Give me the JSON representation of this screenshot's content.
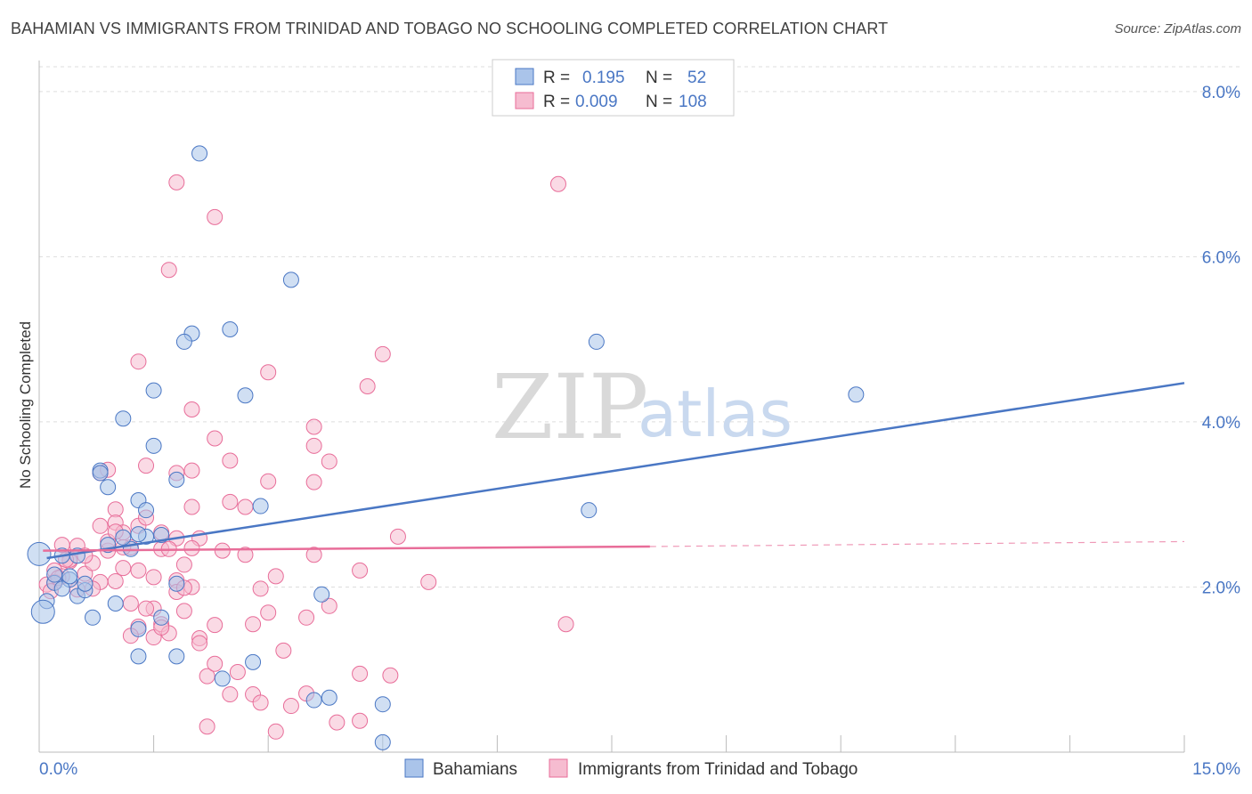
{
  "title": "BAHAMIAN VS IMMIGRANTS FROM TRINIDAD AND TOBAGO NO SCHOOLING COMPLETED CORRELATION CHART",
  "source": "Source: ZipAtlas.com",
  "watermark": {
    "zip": "ZIP",
    "atlas": "atlas"
  },
  "colors": {
    "blue": "#4a77c4",
    "blue_fill": "#aac4ea",
    "pink": "#e86d99",
    "pink_fill": "#f6bcd0",
    "grid": "#dddddd"
  },
  "legend": {
    "rows": [
      {
        "r_label": "R =",
        "r_value": "0.195",
        "n_label": "N =",
        "n_value": "52"
      },
      {
        "r_label": "R =",
        "r_value": "0.009",
        "n_label": "N =",
        "n_value": "108"
      }
    ]
  },
  "chart_data": {
    "type": "scatter",
    "title": "BAHAMIAN VS IMMIGRANTS FROM TRINIDAD AND TOBAGO NO SCHOOLING COMPLETED CORRELATION CHART",
    "xlabel": "",
    "ylabel": "No Schooling Completed",
    "xlim": [
      0,
      15
    ],
    "ylim": [
      0,
      8.3
    ],
    "x_tick_labels": [
      "0.0%",
      "15.0%"
    ],
    "y_ticks": [
      2,
      4,
      6,
      8
    ],
    "y_tick_labels": [
      "2.0%",
      "4.0%",
      "6.0%",
      "8.0%"
    ],
    "grid": true,
    "legend_placement": "top-center",
    "series": [
      {
        "name": "Bahamians",
        "color": "#4a77c4",
        "r": 0.195,
        "n": 52,
        "trend": {
          "x": [
            0.1,
            15.0
          ],
          "y": [
            2.35,
            4.47
          ]
        },
        "x": [
          2.1,
          3.3,
          2.0,
          2.5,
          1.9,
          1.5,
          1.1,
          1.5,
          1.8,
          0.8,
          0.9,
          0.8,
          1.3,
          1.4,
          1.4,
          2.7,
          2.9,
          0.5,
          0.4,
          0.5,
          0.6,
          0.7,
          1.0,
          0.9,
          1.2,
          1.8,
          1.6,
          1.3,
          1.3,
          1.8,
          2.4,
          2.8,
          3.6,
          3.8,
          3.7,
          4.5,
          4.5,
          7.3,
          10.7,
          0.1,
          0.05,
          0.2,
          0.3,
          0.4,
          0.6,
          0.2,
          0.3,
          0.0,
          7.2,
          1.6,
          1.1,
          1.3
        ],
        "y": [
          7.25,
          5.72,
          5.07,
          5.12,
          4.97,
          4.38,
          4.04,
          3.71,
          3.3,
          3.41,
          3.21,
          3.38,
          3.05,
          2.93,
          2.61,
          4.32,
          2.98,
          2.38,
          2.09,
          1.89,
          1.96,
          1.63,
          1.8,
          2.51,
          2.46,
          2.04,
          1.63,
          1.49,
          1.16,
          1.16,
          0.89,
          1.09,
          0.63,
          0.66,
          1.91,
          0.58,
          0.12,
          4.97,
          4.33,
          1.83,
          1.7,
          2.05,
          1.98,
          2.13,
          2.04,
          2.15,
          2.38,
          2.4,
          2.93,
          2.63,
          2.6,
          2.64
        ]
      },
      {
        "name": "Immigrants from Trinidad and Tobago",
        "color": "#e86d99",
        "r": 0.009,
        "n": 108,
        "trend": {
          "x": [
            0.05,
            8.0
          ],
          "y": [
            2.44,
            2.49
          ]
        },
        "trend_dashed": {
          "x": [
            8.0,
            15.0
          ],
          "y": [
            2.49,
            2.55
          ]
        },
        "x": [
          1.8,
          6.8,
          2.3,
          1.7,
          1.3,
          4.5,
          3.0,
          4.3,
          3.6,
          3.6,
          2.3,
          2.0,
          2.5,
          2.0,
          1.4,
          1.8,
          0.8,
          0.9,
          1.0,
          1.0,
          1.1,
          1.3,
          0.9,
          1.6,
          1.8,
          2.1,
          2.0,
          1.9,
          1.8,
          2.7,
          3.1,
          3.6,
          4.2,
          4.7,
          0.2,
          0.3,
          0.4,
          0.5,
          0.6,
          0.7,
          0.8,
          1.1,
          1.2,
          1.0,
          1.3,
          1.5,
          1.5,
          1.9,
          2.1,
          1.6,
          1.7,
          2.3,
          2.8,
          3.0,
          3.2,
          3.5,
          3.8,
          4.2,
          4.6,
          5.1,
          6.9,
          1.3,
          1.2,
          1.5,
          1.6,
          2.1,
          2.2,
          2.3,
          2.5,
          2.6,
          2.8,
          2.9,
          3.3,
          3.5,
          3.9,
          4.2,
          0.9,
          1.0,
          1.1,
          1.4,
          1.6,
          1.7,
          2.0,
          2.5,
          2.7,
          3.0,
          3.6,
          3.8,
          0.4,
          0.6,
          0.8,
          0.3,
          0.2,
          0.1,
          0.15,
          0.25,
          0.5,
          0.7,
          1.2,
          1.4,
          1.8,
          2.0,
          2.4,
          2.9,
          0.35,
          1.9,
          2.2,
          3.1
        ],
        "y": [
          6.9,
          6.88,
          6.48,
          5.84,
          4.73,
          4.82,
          4.6,
          4.43,
          3.94,
          3.71,
          3.8,
          4.15,
          3.53,
          3.41,
          3.47,
          3.38,
          3.38,
          3.42,
          2.94,
          2.78,
          2.66,
          2.74,
          2.44,
          2.66,
          2.59,
          2.59,
          2.47,
          2.27,
          2.08,
          2.39,
          2.13,
          2.39,
          2.2,
          2.61,
          2.2,
          2.51,
          2.31,
          2.5,
          2.16,
          2.29,
          2.06,
          2.23,
          2.48,
          2.07,
          2.2,
          2.12,
          1.74,
          1.71,
          1.38,
          1.55,
          1.44,
          1.54,
          1.55,
          1.69,
          1.23,
          1.63,
          1.77,
          0.95,
          0.93,
          2.06,
          1.55,
          1.52,
          1.41,
          1.39,
          1.51,
          1.32,
          0.92,
          1.07,
          0.7,
          0.97,
          0.7,
          0.6,
          0.56,
          0.71,
          0.36,
          0.38,
          2.55,
          2.67,
          2.48,
          2.84,
          2.46,
          2.46,
          2.97,
          3.03,
          2.97,
          3.28,
          3.27,
          3.52,
          2.33,
          2.38,
          2.74,
          2.13,
          2.06,
          2.03,
          1.95,
          2.11,
          1.97,
          1.98,
          1.8,
          1.74,
          1.94,
          2.0,
          2.44,
          1.98,
          2.33,
          1.99,
          0.31,
          0.25
        ]
      }
    ]
  }
}
